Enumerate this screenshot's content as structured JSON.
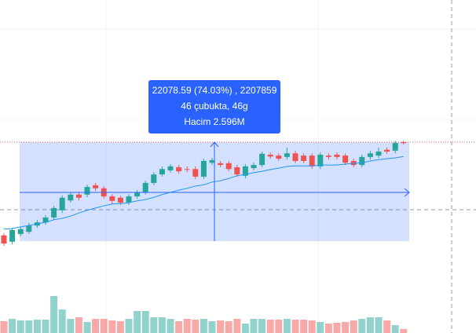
{
  "chart_data": {
    "type": "candlestick",
    "ylim": [
      9330,
      83610
    ],
    "volume_lim": [
      0,
      1272000
    ],
    "colors": {
      "up": "#26a69a",
      "down": "#ef5350",
      "ma": "#2196f3"
    },
    "open": [
      31100,
      29700,
      31400,
      31900,
      33300,
      34000,
      35100,
      36700,
      38900,
      40200,
      40200,
      42300,
      41600,
      39800,
      39500,
      38400,
      39800,
      40700,
      42800,
      44700,
      45600,
      46300,
      45900,
      45900,
      44200,
      47300,
      47200,
      47200,
      46300,
      44400,
      46100,
      46800,
      49100,
      48900,
      48600,
      49400,
      48900,
      48900,
      46500,
      48900,
      49100,
      48900,
      47700,
      46800,
      48600,
      48900,
      50200,
      50000,
      51900
    ],
    "close": [
      29300,
      32300,
      32500,
      33300,
      34000,
      35100,
      37200,
      39500,
      40200,
      39500,
      41900,
      41600,
      39800,
      38800,
      38400,
      39800,
      40700,
      42800,
      44700,
      45900,
      46500,
      45400,
      45800,
      44200,
      47700,
      47900,
      46800,
      45900,
      44700,
      46500,
      46800,
      49300,
      48700,
      48200,
      49400,
      47700,
      47700,
      46500,
      49100,
      48600,
      48600,
      47300,
      46800,
      48600,
      49400,
      49800,
      49800,
      51700,
      51700
    ],
    "high": [
      31600,
      32800,
      33000,
      33900,
      34600,
      35600,
      37700,
      40000,
      40700,
      40700,
      42400,
      42800,
      42100,
      40300,
      40000,
      40300,
      41200,
      43300,
      45200,
      46500,
      47000,
      46800,
      46500,
      46500,
      48200,
      48400,
      47700,
      47700,
      46800,
      47000,
      47300,
      49800,
      49600,
      49400,
      50700,
      50000,
      49400,
      49400,
      49600,
      49400,
      49600,
      49400,
      48200,
      49100,
      50000,
      50700,
      50700,
      52200,
      52200
    ],
    "low": [
      28800,
      29100,
      30900,
      31400,
      32800,
      33500,
      34600,
      36100,
      38400,
      38900,
      39600,
      41000,
      39300,
      38200,
      37900,
      37900,
      39300,
      40200,
      42300,
      44200,
      45100,
      44900,
      45200,
      43700,
      43700,
      46800,
      46300,
      45400,
      44200,
      43800,
      45600,
      46300,
      48200,
      47700,
      48000,
      47200,
      47200,
      45900,
      45900,
      48000,
      48000,
      46800,
      46300,
      46300,
      48000,
      48400,
      49300,
      49400,
      51400
    ],
    "ma": [
      32500,
      32600,
      33000,
      33300,
      33700,
      34000,
      34600,
      34900,
      35400,
      36100,
      36700,
      37200,
      37700,
      38100,
      38200,
      38400,
      38800,
      39100,
      39600,
      40200,
      40700,
      41200,
      41600,
      42100,
      42400,
      43000,
      43300,
      43800,
      44400,
      44700,
      45100,
      45400,
      45800,
      46100,
      46500,
      46600,
      46600,
      46600,
      46800,
      46800,
      46800,
      47000,
      47200,
      47300,
      47700,
      48000,
      48200,
      48400,
      48700
    ],
    "volume": [
      45000,
      54000,
      48000,
      48000,
      51000,
      51000,
      141000,
      90000,
      54000,
      60000,
      42000,
      54000,
      54000,
      48000,
      45000,
      54000,
      84000,
      84000,
      60000,
      60000,
      54000,
      45000,
      54000,
      51000,
      54000,
      45000,
      48000,
      45000,
      54000,
      36000,
      54000,
      54000,
      51000,
      51000,
      54000,
      51000,
      51000,
      48000,
      42000,
      36000,
      39000,
      42000,
      48000,
      54000,
      60000,
      60000,
      48000,
      30000,
      15000
    ],
    "measure": {
      "line1": "22078.59 (74.03%) , 2207859",
      "line2": "46 çubukta, 46g",
      "line3": "Hacim 2.596M"
    }
  }
}
